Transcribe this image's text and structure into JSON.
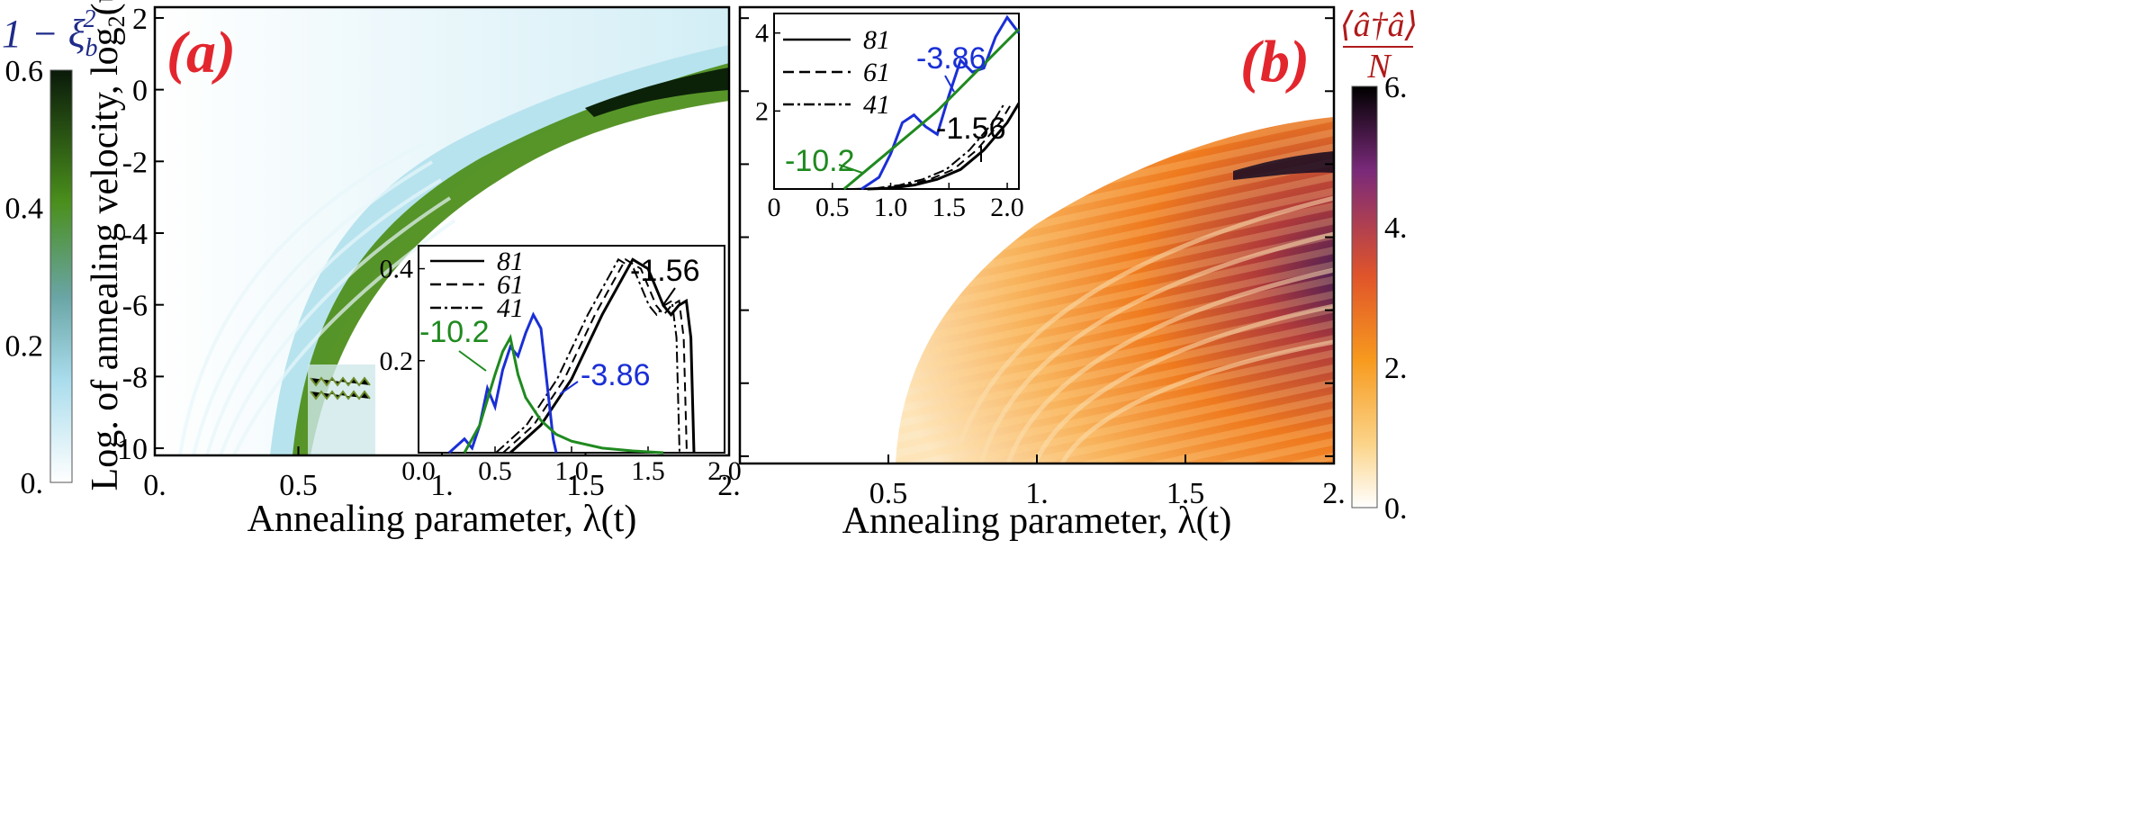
{
  "chart_data": [
    {
      "id": "a",
      "type": "heatmap",
      "panel_label": "(a)",
      "xlabel": "Annealing parameter, λ(t)",
      "ylabel": "Log. of annealing velocity, log",
      "ylabel_sub": "2",
      "ylabel_tail": "(υ)",
      "xlim": [
        0,
        2
      ],
      "ylim": [
        -10.2,
        2.3
      ],
      "xticks": [
        0,
        0.5,
        1,
        1.5,
        2
      ],
      "xtick_labels": [
        "0.",
        "0.5",
        "1.",
        "1.5",
        "2."
      ],
      "yticks": [
        2,
        0,
        -2,
        -4,
        -6,
        -8,
        -10
      ],
      "ytick_labels": [
        "2",
        "0",
        "-2",
        "-4",
        "-6",
        "-8",
        "-10"
      ],
      "colorbar": {
        "label_prefix": "1 − ξ",
        "label_sub": "b",
        "label_sup": "2",
        "range": [
          0,
          0.6
        ],
        "ticks": [
          0,
          0.2,
          0.4,
          0.6
        ],
        "tick_labels": [
          "0.",
          "0.2",
          "0.4",
          "0.6"
        ],
        "colors": [
          "#ffffff",
          "#a9dcec",
          "#6aa5a5",
          "#4a8f1c",
          "#0a1a0a"
        ]
      },
      "inset": {
        "type": "line",
        "xlim": [
          0,
          2
        ],
        "ylim": [
          0,
          0.45
        ],
        "xticks": [
          0,
          0.5,
          1,
          1.5,
          2
        ],
        "xtick_labels": [
          "0.0",
          "0.5",
          "1.0",
          "1.5",
          "2.0"
        ],
        "yticks": [
          0.2,
          0.4
        ],
        "ytick_labels": [
          "0.2",
          "0.4"
        ],
        "legend": [
          "81",
          "61",
          "41"
        ],
        "series": [
          {
            "name": "-1.56",
            "color": "#000000",
            "style": "solid",
            "x": [
              0.6,
              0.8,
              1.0,
              1.2,
              1.4,
              1.5,
              1.6,
              1.65,
              1.7,
              1.75,
              1.78,
              1.8
            ],
            "y": [
              0.0,
              0.06,
              0.16,
              0.3,
              0.42,
              0.4,
              0.32,
              0.3,
              0.32,
              0.33,
              0.25,
              0.0
            ]
          },
          {
            "name": "-3.86",
            "color": "#1a2fd6",
            "style": "solid",
            "x": [
              0.2,
              0.3,
              0.35,
              0.4,
              0.45,
              0.5,
              0.55,
              0.6,
              0.65,
              0.7,
              0.75,
              0.8,
              0.85,
              0.88,
              0.9
            ],
            "y": [
              0.0,
              0.03,
              0.01,
              0.06,
              0.14,
              0.1,
              0.18,
              0.23,
              0.21,
              0.26,
              0.3,
              0.27,
              0.12,
              0.03,
              0.0
            ]
          },
          {
            "name": "-10.2",
            "color": "#1f8a1f",
            "style": "solid",
            "x": [
              0.3,
              0.4,
              0.5,
              0.55,
              0.6,
              0.65,
              0.7,
              0.8,
              0.9,
              1.0,
              1.2,
              1.4,
              1.6
            ],
            "y": [
              0.0,
              0.06,
              0.17,
              0.22,
              0.25,
              0.17,
              0.12,
              0.07,
              0.04,
              0.025,
              0.01,
              0.004,
              0.0
            ]
          }
        ],
        "annotations": [
          {
            "text": "-1.56",
            "color": "#000000"
          },
          {
            "text": "-3.86",
            "color": "#1a2fd6"
          },
          {
            "text": "-10.2",
            "color": "#1f8a1f"
          }
        ]
      }
    },
    {
      "id": "b",
      "type": "heatmap",
      "panel_label": "(b)",
      "xlabel": "Annealing parameter, λ(t)",
      "xlim": [
        0,
        2
      ],
      "ylim": [
        -10.2,
        2.3
      ],
      "xticks": [
        0.5,
        1,
        1.5,
        2
      ],
      "xtick_labels": [
        "0.5",
        "1.",
        "1.5",
        "2."
      ],
      "colorbar": {
        "label_num": "⟨â†â⟩",
        "label_den": "N",
        "range": [
          0,
          6
        ],
        "ticks": [
          0,
          2,
          4,
          6
        ],
        "tick_labels": [
          "0.",
          "2.",
          "4.",
          "6."
        ],
        "colors": [
          "#ffffff",
          "#fbd48a",
          "#f79a1e",
          "#e0542a",
          "#7a2a7a",
          "#000000"
        ]
      },
      "inset": {
        "type": "line",
        "xlim": [
          0,
          2.1
        ],
        "ylim": [
          0,
          4.5
        ],
        "xticks": [
          0,
          0.5,
          1,
          1.5,
          2
        ],
        "xtick_labels": [
          "0",
          "0.5",
          "1.0",
          "1.5",
          "2.0"
        ],
        "yticks": [
          2,
          4
        ],
        "ytick_labels": [
          "2",
          "4"
        ],
        "legend": [
          "81",
          "61",
          "41"
        ],
        "series": [
          {
            "name": "-1.56",
            "color": "#000000",
            "style": "solid",
            "x": [
              0.8,
              1.0,
              1.2,
              1.4,
              1.6,
              1.8,
              2.0,
              2.1
            ],
            "y": [
              0.0,
              0.02,
              0.1,
              0.25,
              0.5,
              1.0,
              1.7,
              2.2
            ]
          },
          {
            "name": "-3.86",
            "color": "#1a2fd6",
            "style": "solid",
            "x": [
              0.75,
              0.9,
              1.0,
              1.1,
              1.2,
              1.3,
              1.4,
              1.5,
              1.6,
              1.7,
              1.8,
              1.9,
              2.0,
              2.1
            ],
            "y": [
              0.0,
              0.3,
              0.9,
              1.7,
              1.9,
              1.6,
              1.4,
              2.4,
              3.3,
              3.0,
              3.1,
              3.9,
              4.4,
              4.0
            ]
          },
          {
            "name": "-10.2",
            "color": "#1f8a1f",
            "style": "solid",
            "x": [
              0.6,
              0.8,
              1.0,
              1.2,
              1.4,
              1.6,
              1.8,
              2.0,
              2.1
            ],
            "y": [
              0.0,
              0.5,
              1.0,
              1.5,
              2.0,
              2.6,
              3.2,
              3.8,
              4.1
            ]
          }
        ],
        "annotations": [
          {
            "text": "-3.86",
            "color": "#1a2fd6"
          },
          {
            "text": "-1.56",
            "color": "#000000"
          },
          {
            "text": "-10.2",
            "color": "#1f8a1f"
          }
        ]
      }
    }
  ]
}
